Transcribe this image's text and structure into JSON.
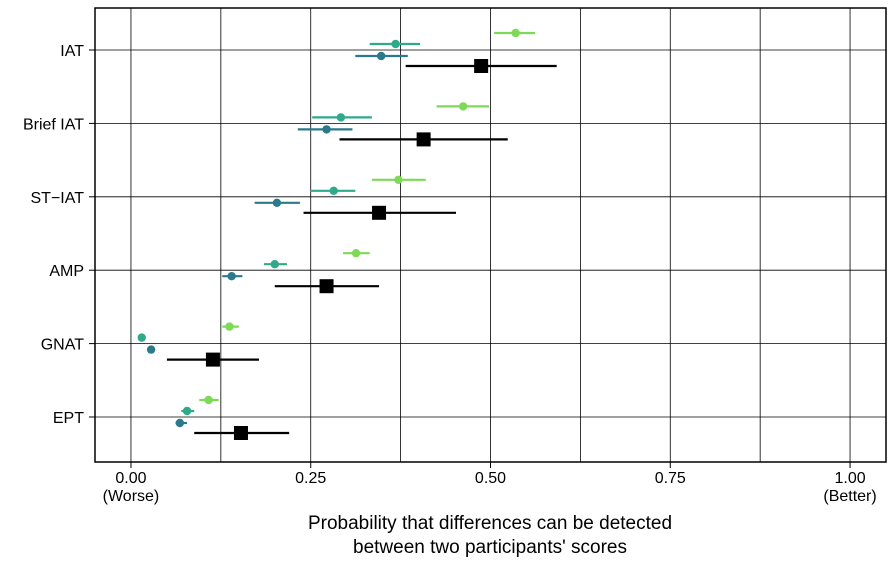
{
  "chart_data": {
    "type": "scatter",
    "title": "",
    "xlabel_lines": [
      "Probability that differences can be detected",
      "between two participants' scores"
    ],
    "ylabel": "",
    "xlim": [
      -0.05,
      1.05
    ],
    "x_ticks": [
      {
        "value": 0.0,
        "label": "0.00",
        "sublabel": "(Worse)"
      },
      {
        "value": 0.25,
        "label": "0.25",
        "sublabel": ""
      },
      {
        "value": 0.5,
        "label": "0.50",
        "sublabel": ""
      },
      {
        "value": 0.75,
        "label": "0.75",
        "sublabel": ""
      },
      {
        "value": 1.0,
        "label": "1.00",
        "sublabel": "(Better)"
      }
    ],
    "categories": [
      "IAT",
      "Brief IAT",
      "ST−IAT",
      "AMP",
      "GNAT",
      "EPT"
    ],
    "grid": true,
    "legend": "none",
    "series_colors": [
      "#7ed957",
      "#2eaa8a",
      "#2a7a8c"
    ],
    "summary_color": "#000000",
    "estimates": [
      {
        "category": "IAT",
        "points": [
          {
            "x": 0.535,
            "lo": 0.505,
            "hi": 0.562
          },
          {
            "x": 0.368,
            "lo": 0.332,
            "hi": 0.402
          },
          {
            "x": 0.348,
            "lo": 0.312,
            "hi": 0.385
          }
        ],
        "summary": {
          "x": 0.487,
          "lo": 0.382,
          "hi": 0.592
        }
      },
      {
        "category": "Brief IAT",
        "points": [
          {
            "x": 0.462,
            "lo": 0.425,
            "hi": 0.498
          },
          {
            "x": 0.292,
            "lo": 0.252,
            "hi": 0.335
          },
          {
            "x": 0.272,
            "lo": 0.232,
            "hi": 0.308
          }
        ],
        "summary": {
          "x": 0.407,
          "lo": 0.29,
          "hi": 0.524
        }
      },
      {
        "category": "ST−IAT",
        "points": [
          {
            "x": 0.372,
            "lo": 0.335,
            "hi": 0.41
          },
          {
            "x": 0.282,
            "lo": 0.25,
            "hi": 0.312
          },
          {
            "x": 0.203,
            "lo": 0.172,
            "hi": 0.235
          }
        ],
        "summary": {
          "x": 0.345,
          "lo": 0.24,
          "hi": 0.452
        }
      },
      {
        "category": "AMP",
        "points": [
          {
            "x": 0.313,
            "lo": 0.295,
            "hi": 0.332
          },
          {
            "x": 0.2,
            "lo": 0.185,
            "hi": 0.217
          },
          {
            "x": 0.14,
            "lo": 0.127,
            "hi": 0.155
          }
        ],
        "summary": {
          "x": 0.272,
          "lo": 0.2,
          "hi": 0.345
        }
      },
      {
        "category": "GNAT",
        "points": [
          {
            "x": 0.137,
            "lo": 0.127,
            "hi": 0.15
          },
          {
            "x": 0.015,
            "lo": 0.012,
            "hi": 0.02
          },
          {
            "x": 0.028,
            "lo": 0.024,
            "hi": 0.033
          }
        ],
        "summary": {
          "x": 0.114,
          "lo": 0.05,
          "hi": 0.178
        }
      },
      {
        "category": "EPT",
        "points": [
          {
            "x": 0.108,
            "lo": 0.095,
            "hi": 0.122
          },
          {
            "x": 0.078,
            "lo": 0.07,
            "hi": 0.088
          },
          {
            "x": 0.068,
            "lo": 0.062,
            "hi": 0.078
          }
        ],
        "summary": {
          "x": 0.153,
          "lo": 0.088,
          "hi": 0.22
        }
      }
    ]
  }
}
